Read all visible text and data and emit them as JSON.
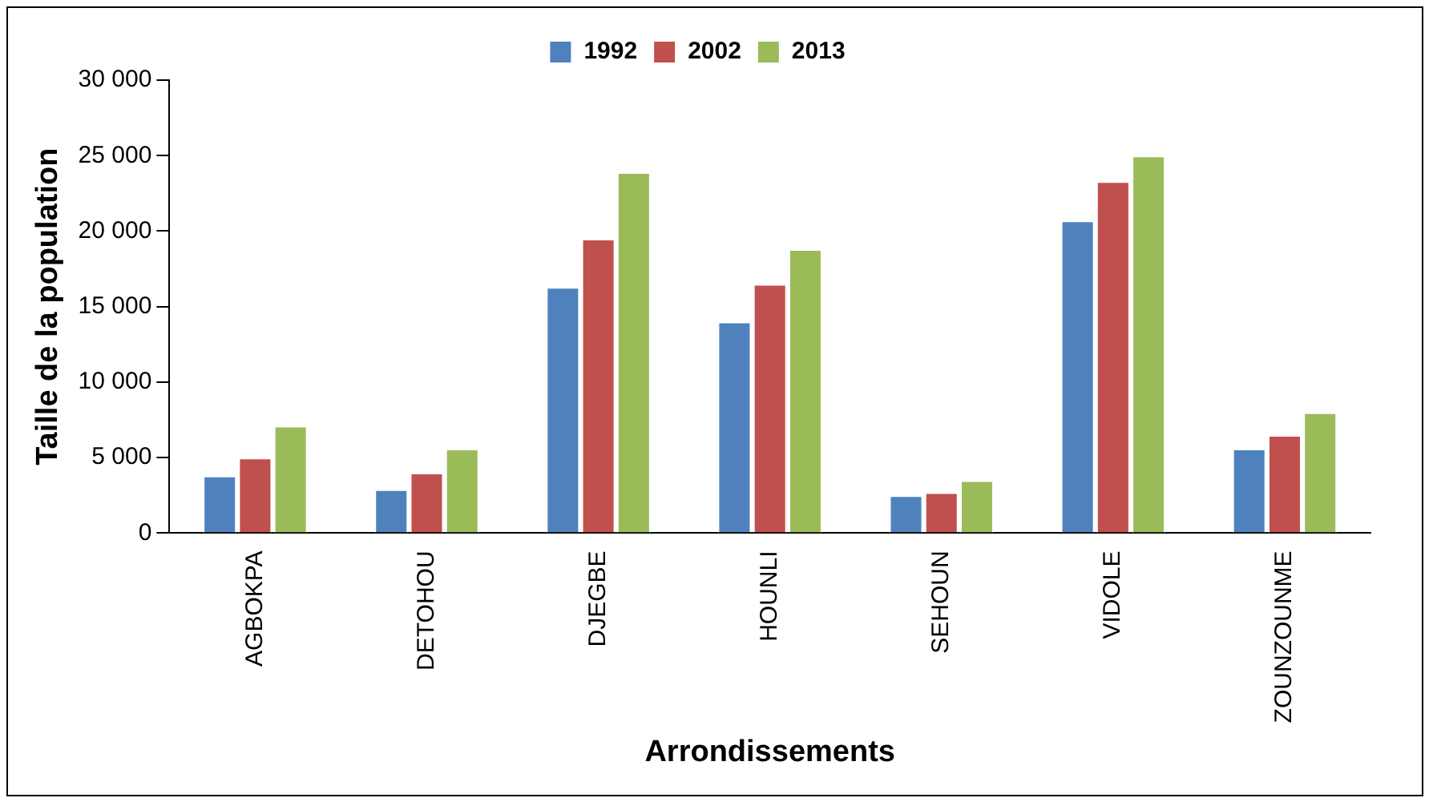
{
  "chart_data": {
    "type": "bar",
    "xlabel": "Arrondissements",
    "ylabel": "Taille de la population",
    "categories": [
      "AGBOKPA",
      "DETOHOU",
      "DJEGBE",
      "HOUNLI",
      "SEHOUN",
      "VIDOLE",
      "ZOUNZOUNME"
    ],
    "series": [
      {
        "name": "1992",
        "color": "#4f81bd",
        "values": [
          3800,
          2900,
          16300,
          14000,
          2500,
          20700,
          5600
        ]
      },
      {
        "name": "2002",
        "color": "#c0504d",
        "values": [
          5000,
          4000,
          19500,
          16500,
          2700,
          23300,
          6500
        ]
      },
      {
        "name": "2013",
        "color": "#9bbb59",
        "values": [
          7100,
          5600,
          23900,
          18800,
          3500,
          25000,
          8000
        ]
      }
    ],
    "ylim": [
      0,
      30000
    ],
    "yticks": [
      {
        "value": 0,
        "label": "0"
      },
      {
        "value": 5000,
        "label": "5 000"
      },
      {
        "value": 10000,
        "label": "10 000"
      },
      {
        "value": 15000,
        "label": "15 000"
      },
      {
        "value": 20000,
        "label": "20 000"
      },
      {
        "value": 25000,
        "label": "25 000"
      },
      {
        "value": 30000,
        "label": "30 000"
      }
    ],
    "grid": false,
    "legend": "top"
  }
}
